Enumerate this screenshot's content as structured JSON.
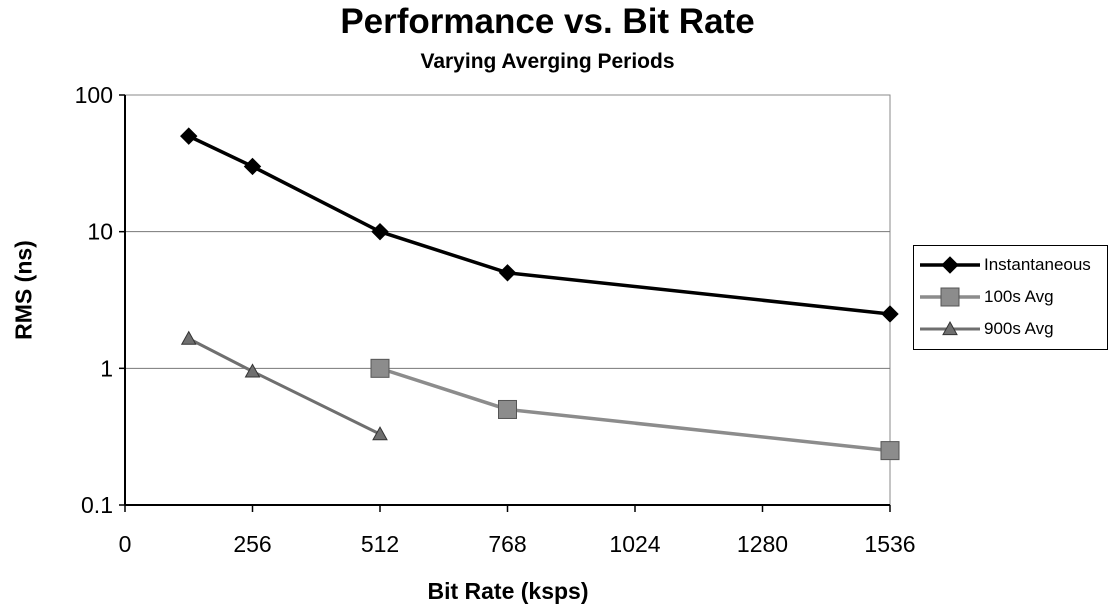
{
  "chart_data": {
    "type": "line",
    "title": "Performance vs. Bit Rate",
    "subtitle": "Varying Averging Periods",
    "xlabel": "Bit Rate (ksps)",
    "ylabel": "RMS (ns)",
    "x_ticks": [
      0,
      256,
      512,
      768,
      1024,
      1280,
      1536
    ],
    "y_ticks": [
      0.1,
      1,
      10,
      100
    ],
    "y_tick_labels": [
      "0.1",
      "1",
      "10",
      "100"
    ],
    "xlim": [
      0,
      1536
    ],
    "ylim": [
      0.1,
      100
    ],
    "y_scale": "log",
    "grid": "horizontal",
    "legend_position": "right",
    "series": [
      {
        "name": "Instantaneous",
        "marker": "diamond",
        "color": "#000000",
        "x": [
          128,
          256,
          512,
          768,
          1536
        ],
        "y": [
          50,
          30,
          10,
          5,
          2.5
        ]
      },
      {
        "name": "100s Avg",
        "marker": "square",
        "color": "#8c8c8c",
        "x": [
          512,
          768,
          1536
        ],
        "y": [
          1.0,
          0.5,
          0.25
        ]
      },
      {
        "name": "900s Avg",
        "marker": "triangle",
        "color": "#6f6f6f",
        "x": [
          128,
          256,
          512
        ],
        "y": [
          1.65,
          0.95,
          0.33
        ]
      }
    ]
  }
}
